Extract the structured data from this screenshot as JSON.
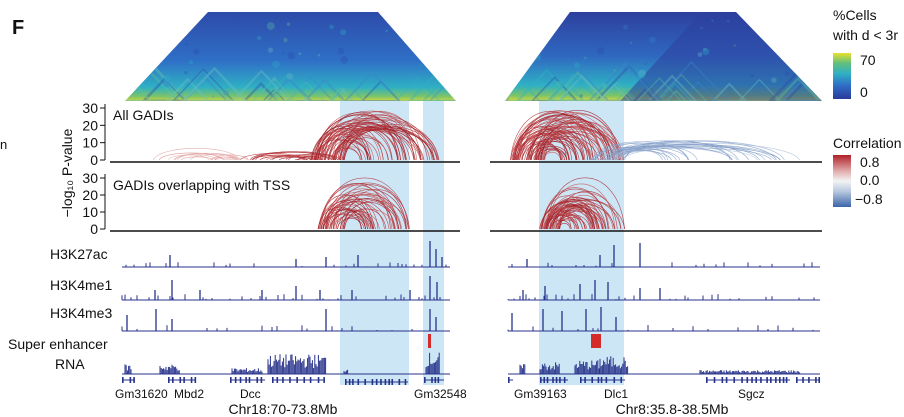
{
  "panel_label": "F",
  "colorbar_cells": {
    "title_line1": "%Cells",
    "title_line2": "with d < 3r",
    "max_label": "70",
    "min_label": "0",
    "colors": [
      "#2a3a9a",
      "#2f6fc6",
      "#2fb0c4",
      "#62c07c",
      "#e8e030"
    ]
  },
  "colorbar_corr": {
    "title": "Correlation",
    "labels": [
      "0.8",
      "0.0",
      "−0.8"
    ],
    "colors": [
      "#b02028",
      "#e8c0c0",
      "#f2f2f2",
      "#b8c8e0",
      "#3b65a8"
    ]
  },
  "left_edge_text": "n",
  "y_axis": {
    "label": "−log₁₀ P-value",
    "ticks": [
      "30",
      "20",
      "10",
      "0"
    ]
  },
  "track_labels": {
    "all_gadis": "All GADIs",
    "tss_gadis": "GADIs overlapping with TSS",
    "h3k27ac": "H3K27ac",
    "h3k4me1": "H3K4me1",
    "h3k4me3": "H3K4me3",
    "super_enhancer": "Super enhancer",
    "rna": "RNA"
  },
  "chart_data": [
    {
      "type": "heatmap+arc",
      "region": "Chr18:70-73.8Mb",
      "genes": [
        "Gm31620",
        "Mbd2",
        "Dcc",
        "Gm32548"
      ],
      "ylim": [
        0,
        35
      ],
      "heatmap_scale": "%Cells with d < 3r",
      "heatmap_range": [
        0,
        70
      ],
      "arc_color_scale": "Correlation",
      "arc_color_range": [
        -0.8,
        0.8
      ],
      "highlighted_regions": 2
    },
    {
      "type": "heatmap+arc",
      "region": "Chr8:35.8-38.5Mb",
      "genes": [
        "Gm39163",
        "Dlc1",
        "Sgcz"
      ],
      "ylim": [
        0,
        35
      ],
      "heatmap_scale": "%Cells with d < 3r",
      "heatmap_range": [
        0,
        70
      ],
      "arc_color_scale": "Correlation",
      "arc_color_range": [
        -0.8,
        0.8
      ],
      "highlighted_regions": 1
    }
  ]
}
